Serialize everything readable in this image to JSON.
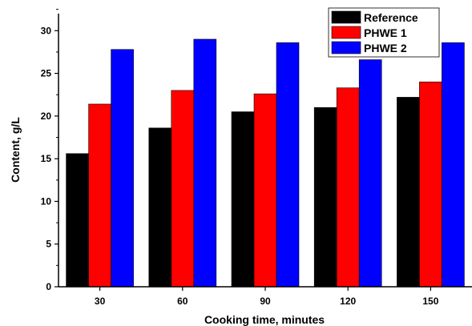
{
  "chart_data": {
    "type": "bar",
    "categories": [
      "30",
      "60",
      "90",
      "120",
      "150"
    ],
    "series": [
      {
        "name": "Reference",
        "color": "#000000",
        "values": [
          15.6,
          18.6,
          20.5,
          21.0,
          22.2
        ]
      },
      {
        "name": "PHWE 1",
        "color": "#ff0000",
        "values": [
          21.4,
          23.0,
          22.6,
          23.3,
          24.0
        ]
      },
      {
        "name": "PHWE 2",
        "color": "#0000ff",
        "values": [
          27.8,
          29.0,
          28.6,
          26.6,
          28.6
        ]
      }
    ],
    "xlabel": "Cooking time, minutes",
    "ylabel": "Content, g/L",
    "ylim": [
      0,
      32
    ],
    "yticks": [
      0,
      5,
      10,
      15,
      20,
      25,
      30
    ],
    "legend_position": "top-right",
    "grid": false
  }
}
